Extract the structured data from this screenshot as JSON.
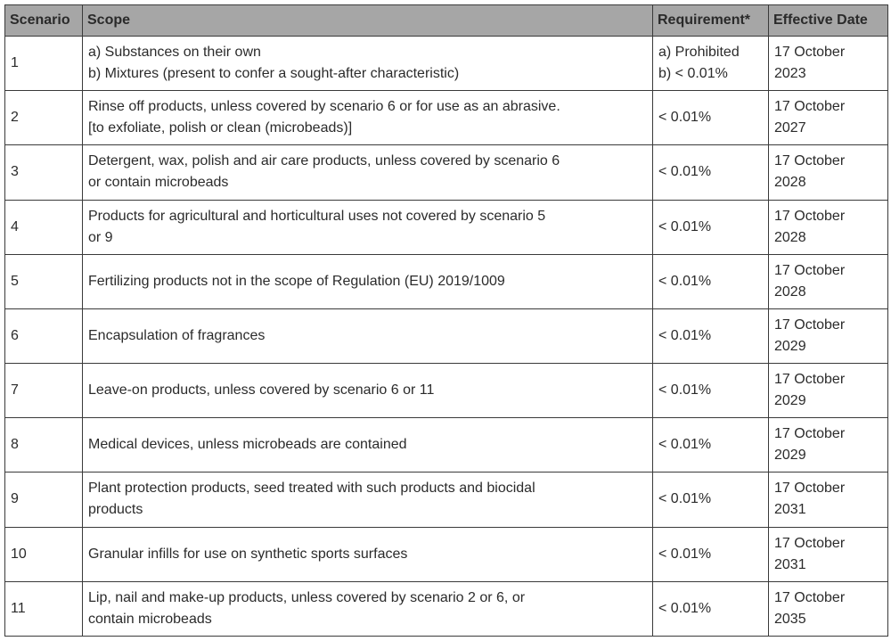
{
  "headers": {
    "scenario": "Scenario",
    "scope": "Scope",
    "requirement": "Requirement*",
    "date": "Effective Date"
  },
  "rows": [
    {
      "scenario": "1",
      "scope": [
        "a) Substances on their own",
        "b) Mixtures (present to confer a sought-after characteristic)"
      ],
      "requirement": [
        "a) Prohibited",
        "b) < 0.01%"
      ],
      "date": [
        "17 October",
        "2023"
      ]
    },
    {
      "scenario": "2",
      "scope": [
        "Rinse off products, unless covered by scenario 6 or for use as an abrasive.",
        "[to exfoliate, polish or clean (microbeads)]"
      ],
      "requirement": [
        "< 0.01%"
      ],
      "date": [
        "17 October",
        "2027"
      ]
    },
    {
      "scenario": "3",
      "scope": [
        "Detergent, wax, polish and air care products, unless covered by scenario 6",
        "or contain microbeads"
      ],
      "requirement": [
        "< 0.01%"
      ],
      "date": [
        "17 October",
        "2028"
      ]
    },
    {
      "scenario": "4",
      "scope": [
        "Products for agricultural and horticultural uses not covered by scenario 5",
        "or 9"
      ],
      "requirement": [
        "< 0.01%"
      ],
      "date": [
        "17 October",
        "2028"
      ]
    },
    {
      "scenario": "5",
      "scope": [
        "Fertilizing products not in the scope of Regulation (EU) 2019/1009"
      ],
      "requirement": [
        "< 0.01%"
      ],
      "date": [
        "17 October",
        "2028"
      ]
    },
    {
      "scenario": "6",
      "scope": [
        "Encapsulation of fragrances"
      ],
      "requirement": [
        "< 0.01%"
      ],
      "date": [
        "17 October",
        "2029"
      ]
    },
    {
      "scenario": "7",
      "scope": [
        "Leave-on products, unless covered by scenario 6 or 11"
      ],
      "requirement": [
        "< 0.01%"
      ],
      "date": [
        "17 October",
        "2029"
      ]
    },
    {
      "scenario": "8",
      "scope": [
        "Medical devices, unless microbeads are contained"
      ],
      "requirement": [
        "< 0.01%"
      ],
      "date": [
        "17 October",
        "2029"
      ]
    },
    {
      "scenario": "9",
      "scope": [
        "Plant protection products, seed treated with such products and biocidal",
        "products"
      ],
      "requirement": [
        "< 0.01%"
      ],
      "date": [
        "17 October",
        "2031"
      ]
    },
    {
      "scenario": "10",
      "scope": [
        "Granular infills for use on synthetic sports surfaces"
      ],
      "requirement": [
        "< 0.01%"
      ],
      "date": [
        "17 October",
        "2031"
      ]
    },
    {
      "scenario": "11",
      "scope": [
        "Lip, nail and make-up products, unless covered by scenario 2 or 6, or",
        "contain microbeads"
      ],
      "requirement": [
        "< 0.01%"
      ],
      "date": [
        "17 October",
        "2035"
      ]
    }
  ]
}
